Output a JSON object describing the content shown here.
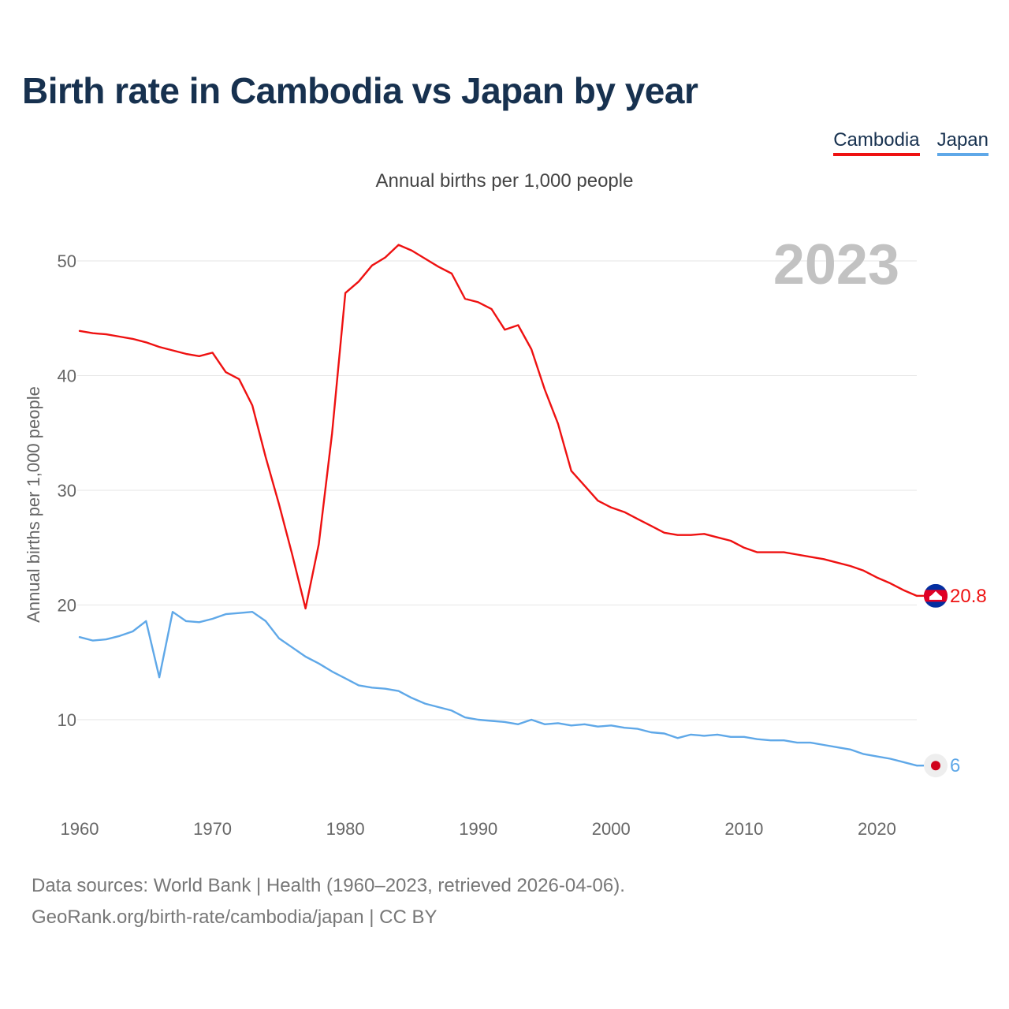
{
  "title": "Birth rate in Cambodia vs Japan by year",
  "legend": {
    "cambodia": "Cambodia",
    "japan": "Japan"
  },
  "subtitle": "Annual births per 1,000 people",
  "footer": {
    "line1": "Data sources: World Bank | Health (1960–2023, retrieved 2026-04-06).",
    "line2": "GeoRank.org/birth-rate/cambodia/japan | CC BY"
  },
  "chart_data": {
    "type": "line",
    "title": "Birth rate in Cambodia vs Japan by year",
    "ylabel": "Annual births per 1,000 people",
    "xlabel": "",
    "year_label": "2023",
    "xlim": [
      1960,
      2023
    ],
    "ylim": [
      3,
      55
    ],
    "x_ticks": [
      1960,
      1970,
      1980,
      1990,
      2000,
      2010,
      2020
    ],
    "y_ticks": [
      10,
      20,
      30,
      40,
      50
    ],
    "grid": true,
    "legend_position": "top-right",
    "x": [
      1960,
      1961,
      1962,
      1963,
      1964,
      1965,
      1966,
      1967,
      1968,
      1969,
      1970,
      1971,
      1972,
      1973,
      1974,
      1975,
      1976,
      1977,
      1978,
      1979,
      1980,
      1981,
      1982,
      1983,
      1984,
      1985,
      1986,
      1987,
      1988,
      1989,
      1990,
      1991,
      1992,
      1993,
      1994,
      1995,
      1996,
      1997,
      1998,
      1999,
      2000,
      2001,
      2002,
      2003,
      2004,
      2005,
      2006,
      2007,
      2008,
      2009,
      2010,
      2011,
      2012,
      2013,
      2014,
      2015,
      2016,
      2017,
      2018,
      2019,
      2020,
      2021,
      2022,
      2023
    ],
    "series": [
      {
        "name": "Cambodia",
        "color": "#ee1111",
        "end_label": "20.8",
        "values": [
          43.9,
          43.7,
          43.6,
          43.4,
          43.2,
          42.9,
          42.5,
          42.2,
          41.9,
          41.7,
          42.0,
          40.3,
          39.7,
          37.4,
          32.9,
          28.8,
          24.4,
          19.7,
          25.3,
          35.0,
          47.2,
          48.2,
          49.6,
          50.3,
          51.4,
          50.9,
          50.2,
          49.5,
          48.9,
          46.7,
          46.4,
          45.8,
          44.0,
          44.4,
          42.3,
          38.8,
          35.8,
          31.7,
          30.4,
          29.1,
          28.5,
          28.1,
          27.5,
          26.9,
          26.3,
          26.1,
          26.1,
          26.2,
          25.9,
          25.6,
          25.0,
          24.6,
          24.6,
          24.6,
          24.4,
          24.2,
          24.0,
          23.7,
          23.4,
          23.0,
          22.4,
          21.9,
          21.3,
          20.8
        ]
      },
      {
        "name": "Japan",
        "color": "#5fa8e8",
        "end_label": "6",
        "values": [
          17.2,
          16.9,
          17.0,
          17.3,
          17.7,
          18.6,
          13.7,
          19.4,
          18.6,
          18.5,
          18.8,
          19.2,
          19.3,
          19.4,
          18.6,
          17.1,
          16.3,
          15.5,
          14.9,
          14.2,
          13.6,
          13.0,
          12.8,
          12.7,
          12.5,
          11.9,
          11.4,
          11.1,
          10.8,
          10.2,
          10.0,
          9.9,
          9.8,
          9.6,
          10.0,
          9.6,
          9.7,
          9.5,
          9.6,
          9.4,
          9.5,
          9.3,
          9.2,
          8.9,
          8.8,
          8.4,
          8.7,
          8.6,
          8.7,
          8.5,
          8.5,
          8.3,
          8.2,
          8.2,
          8.0,
          8.0,
          7.8,
          7.6,
          7.4,
          7.0,
          6.8,
          6.6,
          6.3,
          6.0
        ]
      }
    ]
  }
}
